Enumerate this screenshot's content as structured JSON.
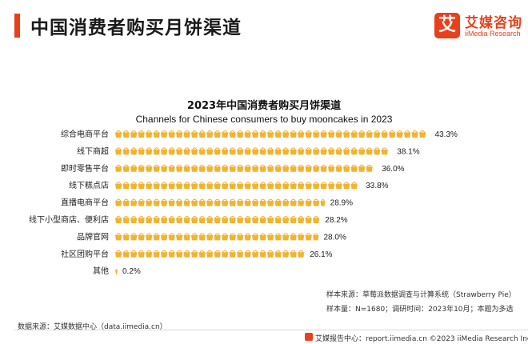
{
  "header": {
    "title": "中国消费者购买月饼渠道",
    "logo_mark": "艾",
    "logo_name": "艾媒咨询",
    "logo_en": "iiMedia Research",
    "accent_color": "#e8401c"
  },
  "chart_data": {
    "type": "bar",
    "orientation": "horizontal",
    "title": "2023年中国消费者购买月饼渠道",
    "subtitle": "Channels for Chinese consumers to buy mooncakes in 2023",
    "categories": [
      "综合电商平台",
      "线下商超",
      "即时零售平台",
      "线下糕点店",
      "直播电商平台",
      "线下小型商店、便利店",
      "品牌官网",
      "社区团购平台",
      "其他"
    ],
    "values": [
      43.3,
      38.1,
      36.0,
      33.8,
      28.9,
      28.2,
      28.0,
      26.1,
      0.2
    ],
    "value_labels": [
      "43.3%",
      "38.1%",
      "36.0%",
      "33.8%",
      "28.9%",
      "28.2%",
      "28.0%",
      "26.1%",
      "0.2%"
    ],
    "unit": "%",
    "bar_color": "#f2b330",
    "bar_style": "pictograph",
    "xlim": [
      0,
      45
    ],
    "grid": false,
    "legend": "none"
  },
  "notes": {
    "data_source": "数据来源：艾媒数据中心（data.iimedia.cn）",
    "sample_source": "样本来源：草莓派数据调查与计算系统（Strawberry Pie）",
    "sample_size": "样本量：N=1680；调研时间：2023年10月；本题为多选",
    "footer": "艾媒报告中心：report.iimedia.cn    ©2023  iiMedia Research  Inc"
  }
}
